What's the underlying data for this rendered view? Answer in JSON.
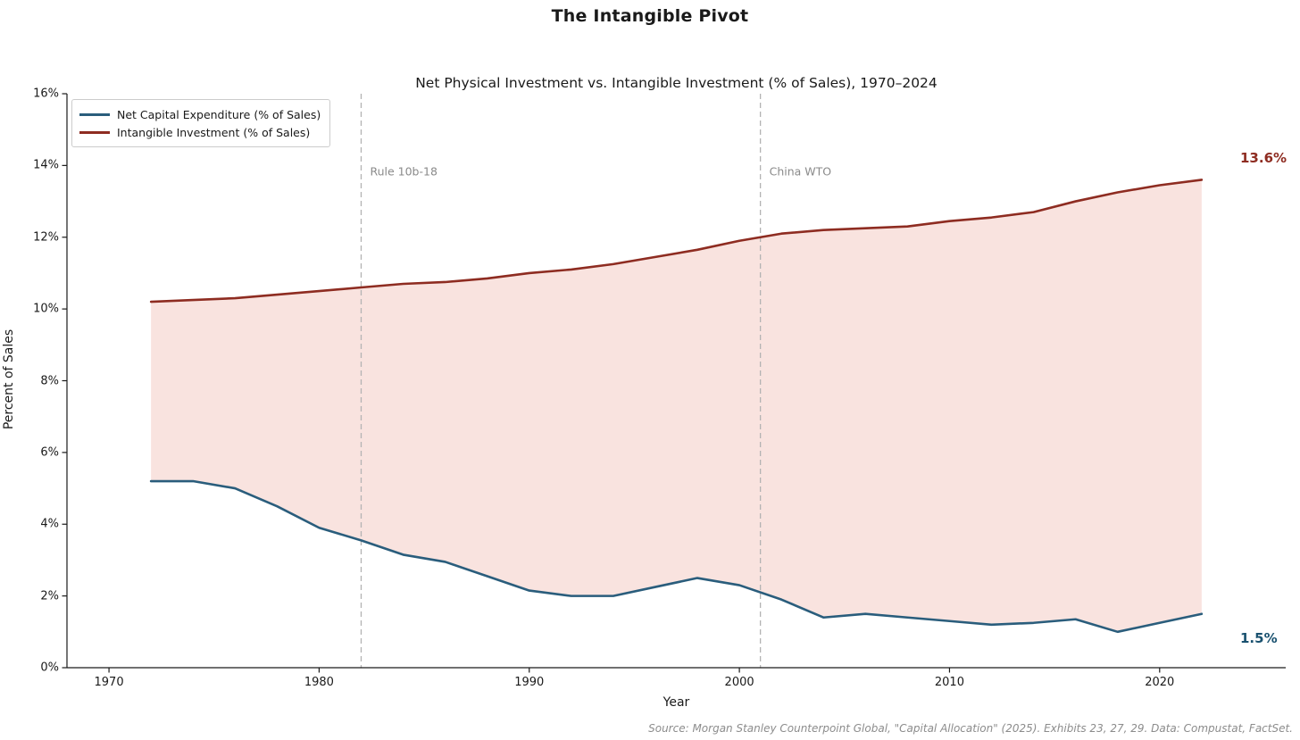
{
  "title": "The Intangible Pivot",
  "chart_data": {
    "type": "line",
    "title": "Net Physical Investment vs. Intangible Investment (% of Sales), 1970–2024",
    "xlabel": "Year",
    "ylabel": "Percent of Sales",
    "x": [
      1972,
      1974,
      1976,
      1978,
      1980,
      1982,
      1984,
      1986,
      1988,
      1990,
      1992,
      1994,
      1996,
      1998,
      2000,
      2002,
      2004,
      2006,
      2008,
      2010,
      2012,
      2014,
      2016,
      2018,
      2020,
      2022
    ],
    "series": [
      {
        "name": "Net Capital Expenditure (% of Sales)",
        "color": "#2a5d7c",
        "values": [
          5.2,
          5.2,
          5.0,
          4.5,
          3.9,
          3.55,
          3.15,
          2.95,
          2.55,
          2.15,
          2.0,
          2.0,
          2.25,
          2.5,
          2.3,
          1.9,
          1.4,
          1.5,
          1.4,
          1.3,
          1.2,
          1.25,
          1.35,
          1.0,
          1.25,
          1.5
        ]
      },
      {
        "name": "Intangible Investment (% of Sales)",
        "color": "#8e2c21",
        "values": [
          10.2,
          10.25,
          10.3,
          10.4,
          10.5,
          10.6,
          10.7,
          10.75,
          10.85,
          11.0,
          11.1,
          11.25,
          11.45,
          11.65,
          11.9,
          12.1,
          12.2,
          12.25,
          12.3,
          12.45,
          12.55,
          12.7,
          13.0,
          13.25,
          13.45,
          13.6
        ]
      }
    ],
    "fill_between_color": "#f9e3df",
    "xlim": [
      1968,
      2026
    ],
    "ylim": [
      0,
      16
    ],
    "x_ticks": [
      1970,
      1980,
      1990,
      2000,
      2010,
      2020
    ],
    "y_ticks": [
      0,
      2,
      4,
      6,
      8,
      10,
      12,
      14,
      16
    ],
    "y_tick_labels": [
      "0%",
      "2%",
      "4%",
      "6%",
      "8%",
      "10%",
      "12%",
      "14%",
      "16%"
    ],
    "grid": false,
    "legend_position": "upper left",
    "annotations": [
      {
        "label": "Rule 10b-18",
        "year": 1982
      },
      {
        "label": "China WTO",
        "year": 2001
      }
    ],
    "end_labels": [
      {
        "text": "13.6%",
        "color": "#8e2c21",
        "series_index": 1
      },
      {
        "text": "1.5%",
        "color": "#19516f",
        "series_index": 0
      }
    ]
  },
  "source": "Source: Morgan Stanley Counterpoint Global, \"Capital Allocation\" (2025). Exhibits 23, 27, 29. Data: Compustat, FactSet."
}
